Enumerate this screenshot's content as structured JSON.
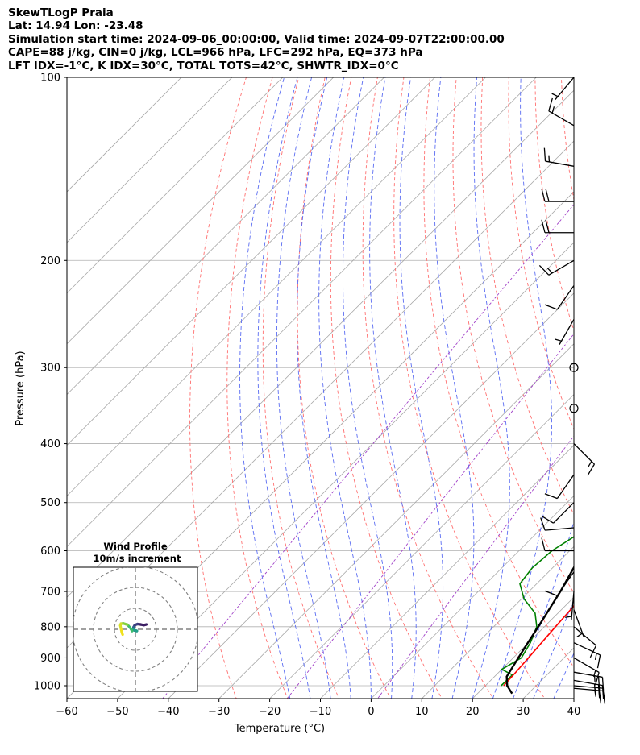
{
  "header": {
    "line1": "SkewTLogP Praia",
    "line2": "Lat: 14.94   Lon: -23.48",
    "line3": "Simulation start time: 2024-09-06_00:00:00, Valid time: 2024-09-07T22:00:00.00",
    "line4": "CAPE=88 j/kg, CIN=0 j/kg, LCL=966 hPa, LFC=292 hPa, EQ=373 hPa",
    "line5": "LFT IDX=-1°C, K IDX=30°C, TOTAL TOTS=42°C, SHWTR_IDX=0°C"
  },
  "chart_data": {
    "type": "line",
    "title": "SkewTLogP Praia",
    "xlabel": "Temperature (°C)",
    "ylabel": "Pressure (hPa)",
    "xlim": [
      -60,
      40
    ],
    "ylim": [
      1050,
      100
    ],
    "y_scale": "log",
    "grid": true,
    "x_ticks": [
      -60,
      -50,
      -40,
      -30,
      -20,
      -10,
      0,
      10,
      20,
      30,
      40
    ],
    "x_tick_labels": [
      "−60",
      "−50",
      "−40",
      "−30",
      "−20",
      "−10",
      "0",
      "10",
      "20",
      "30",
      "40"
    ],
    "y_ticks": [
      1000,
      900,
      800,
      700,
      600,
      500,
      400,
      300,
      200,
      100
    ],
    "y_tick_labels": [
      "1000",
      "900",
      "800",
      "700",
      "600",
      "500",
      "400",
      "300",
      "200",
      "100"
    ],
    "series": [
      {
        "kind": "temperature",
        "color": "#ff0000",
        "points": [
          [
            1000,
            23.6
          ],
          [
            960,
            23.4
          ],
          [
            900,
            23.0
          ],
          [
            850,
            22.6
          ],
          [
            800,
            22.2
          ],
          [
            750,
            21.8
          ],
          [
            700,
            21.2
          ],
          [
            650,
            20.3
          ],
          [
            600,
            18.8
          ],
          [
            550,
            16.9
          ],
          [
            500,
            14.8
          ],
          [
            450,
            12.4
          ],
          [
            420,
            10.5
          ],
          [
            400,
            9.8
          ],
          [
            380,
            9.4
          ],
          [
            370,
            9.5
          ],
          [
            360,
            9.9
          ],
          [
            340,
            10.5
          ],
          [
            320,
            10.6
          ],
          [
            300,
            9.4
          ],
          [
            280,
            6.8
          ],
          [
            260,
            3.8
          ],
          [
            240,
            0.5
          ],
          [
            220,
            -2.6
          ],
          [
            200,
            -5.6
          ],
          [
            180,
            -8.2
          ],
          [
            160,
            -10.4
          ],
          [
            150,
            -11.5
          ],
          [
            140,
            -14.2
          ],
          [
            130,
            -16.8
          ],
          [
            120,
            -19.2
          ],
          [
            110,
            -22.5
          ],
          [
            103,
            -25.2
          ],
          [
            100,
            -26.8
          ]
        ]
      },
      {
        "kind": "dewpoint",
        "color": "#008000",
        "points": [
          [
            1000,
            23.1
          ],
          [
            960,
            23.2
          ],
          [
            940,
            20.0
          ],
          [
            900,
            21.6
          ],
          [
            850,
            20.4
          ],
          [
            800,
            18.5
          ],
          [
            760,
            15.5
          ],
          [
            720,
            10.5
          ],
          [
            680,
            6.7
          ],
          [
            640,
            6.0
          ],
          [
            600,
            6.5
          ],
          [
            550,
            9.1
          ],
          [
            500,
            12.0
          ],
          [
            450,
            13.2
          ],
          [
            420,
            12.2
          ],
          [
            400,
            11.1
          ],
          [
            380,
            8.2
          ],
          [
            370,
            -3.0
          ],
          [
            340,
            -5.2
          ],
          [
            320,
            -5.0
          ],
          [
            310,
            -1.6
          ],
          [
            300,
            -4.0
          ],
          [
            280,
            -7.1
          ],
          [
            265,
            -8.0
          ],
          [
            250,
            -7.4
          ],
          [
            240,
            -3.5
          ],
          [
            220,
            -4.3
          ],
          [
            210,
            -8.6
          ],
          [
            200,
            -13.1
          ],
          [
            190,
            -16.3
          ],
          [
            180,
            -15.2
          ],
          [
            170,
            -15.4
          ],
          [
            160,
            -17.6
          ],
          [
            150,
            -20.6
          ],
          [
            140,
            -24.0
          ],
          [
            130,
            -28.8
          ],
          [
            120,
            -31.5
          ],
          [
            110,
            -28.9
          ],
          [
            103,
            -27.0
          ],
          [
            100,
            -26.4
          ]
        ]
      },
      {
        "kind": "parcel",
        "color": "#000000",
        "points": [
          [
            1030,
            26.8
          ],
          [
            1000,
            24.3
          ],
          [
            966,
            22.4
          ],
          [
            900,
            21.0
          ],
          [
            850,
            19.9
          ],
          [
            800,
            18.8
          ],
          [
            700,
            16.2
          ],
          [
            600,
            12.7
          ],
          [
            500,
            7.4
          ],
          [
            450,
            3.8
          ],
          [
            400,
            -0.9
          ],
          [
            373,
            -4.0
          ],
          [
            350,
            -7.1
          ],
          [
            300,
            -14.8
          ],
          [
            292,
            -16.2
          ],
          [
            250,
            -24.8
          ],
          [
            200,
            -38.2
          ],
          [
            150,
            -53.0
          ],
          [
            100,
            -72.9
          ]
        ]
      }
    ],
    "shading": [
      {
        "name": "cape",
        "color": "#7fafd2",
        "between": [
          "parcel",
          "temperature"
        ],
        "p_range": [
          373,
          100
        ]
      },
      {
        "name": "cin",
        "color": "#f08c8c",
        "between": [
          "parcel",
          "temperature"
        ],
        "p_range": [
          480,
          400
        ]
      }
    ],
    "wind_barbs": {
      "pressure": [
        100,
        120,
        140,
        160,
        180,
        200,
        220,
        250,
        300,
        350,
        400,
        450,
        500,
        550,
        600,
        650,
        700,
        750,
        800,
        850,
        900,
        950,
        980,
        1000,
        1010
      ],
      "speed_kt": [
        5,
        15,
        15,
        20,
        20,
        15,
        10,
        5,
        0,
        0,
        15,
        10,
        10,
        10,
        10,
        10,
        5,
        5,
        10,
        15,
        15,
        25,
        25,
        25,
        25
      ],
      "direction_deg": [
        220,
        300,
        280,
        270,
        270,
        240,
        215,
        210,
        0,
        0,
        135,
        215,
        225,
        265,
        270,
        215,
        185,
        160,
        130,
        115,
        120,
        100,
        100,
        95,
        95
      ]
    },
    "hodograph": {
      "title": "Wind Profile",
      "subtitle": "10m/s increment",
      "rings_ms": [
        10,
        20,
        30
      ],
      "trace": [
        [
          5.2,
          2.3
        ],
        [
          4.0,
          2.0
        ],
        [
          2.5,
          2.3
        ],
        [
          1.0,
          2.5
        ],
        [
          -0.3,
          2.0
        ],
        [
          -0.9,
          1.0
        ],
        [
          -1.0,
          0.0
        ],
        [
          -0.5,
          -0.5
        ],
        [
          0.2,
          -0.6
        ],
        [
          0.7,
          -0.8
        ],
        [
          -1.4,
          -0.1
        ],
        [
          -1.6,
          -0.8
        ],
        [
          -2.4,
          0.6
        ],
        [
          -3.8,
          2.2
        ],
        [
          -5.8,
          2.8
        ],
        [
          -6.9,
          2.7
        ],
        [
          -7.2,
          1.8
        ],
        [
          -6.9,
          0.3
        ],
        [
          -6.5,
          -1.5
        ],
        [
          -6.1,
          -2.5
        ]
      ]
    }
  }
}
